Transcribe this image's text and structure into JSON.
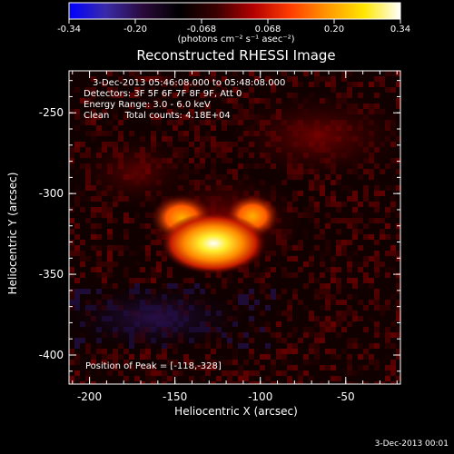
{
  "colorbar": {
    "tick_labels": [
      "-0.34",
      "-0.20",
      "-0.068",
      "0.068",
      "0.20",
      "0.34"
    ],
    "range": [
      -0.34,
      0.34
    ],
    "units_label": "(photons cm⁻² s⁻¹ asec⁻²)",
    "colors": [
      "#0000ff",
      "#3a2aa8",
      "#2a0a3a",
      "#000000",
      "#3a0000",
      "#b40000",
      "#ff3c00",
      "#ff9600",
      "#ffe600",
      "#ffffff"
    ]
  },
  "image": {
    "title": "Reconstructed RHESSI Image",
    "time_range": "3-Dec-2013 05:46:08.000 to 05:48:08.000",
    "detectors": "Detectors: 3F 5F 6F 7F 8F 9F, Att 0",
    "energy": "Energy Range: 3.0 - 6.0 keV",
    "algorithm": "Clean",
    "counts": "Total counts: 4.18E+04",
    "peak": "Position of Peak = [-118,-328]",
    "peak_position": [
      -118,
      -328
    ],
    "xlabel": "Heliocentric X (arcsec)",
    "ylabel": "Heliocentric Y (arcsec)",
    "x_ticks": [
      "-200",
      "-150",
      "-100",
      "-50"
    ],
    "x_tick_values": [
      -200,
      -150,
      -100,
      -50
    ],
    "y_ticks": [
      "-250",
      "-300",
      "-350",
      "-400"
    ],
    "y_tick_values": [
      -250,
      -300,
      -350,
      -400
    ],
    "xlim": [
      -212,
      -18
    ],
    "ylim": [
      -418,
      -224
    ]
  },
  "footer": {
    "timestamp": "3-Dec-2013 00:01"
  }
}
